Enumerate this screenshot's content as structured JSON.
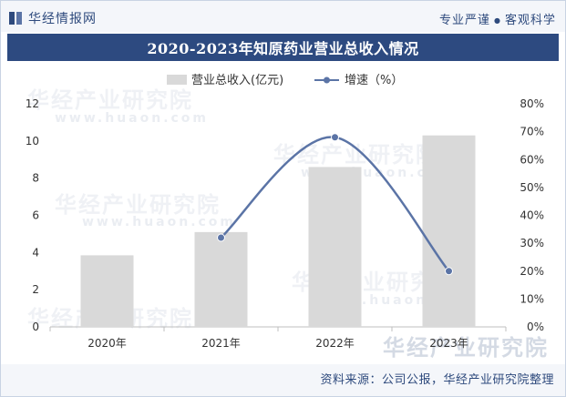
{
  "header": {
    "brand": "华经情报网",
    "slogan_left": "专业严谨",
    "slogan_dot": "●",
    "slogan_right": "客观科学"
  },
  "title": "2020-2023年知原药业营业总收入情况",
  "chart_data": {
    "type": "bar",
    "title": "2020-2023年知原药业营业总收入情况",
    "categories": [
      "2020年",
      "2021年",
      "2022年",
      "2023年"
    ],
    "series": [
      {
        "name": "营业总收入(亿元)",
        "type": "bar",
        "axis": "left",
        "values": [
          3.85,
          5.1,
          8.6,
          10.3
        ],
        "color": "#d9d9d9"
      },
      {
        "name": "增速（%）",
        "type": "line",
        "axis": "right",
        "values": [
          null,
          32,
          68,
          20
        ],
        "color": "#5b74a6"
      }
    ],
    "y_left": {
      "min": 0,
      "max": 12,
      "ticks": [
        0,
        2,
        4,
        6,
        8,
        10,
        12
      ],
      "labels": [
        "0",
        "2",
        "4",
        "6",
        "8",
        "10",
        "12"
      ]
    },
    "y_right": {
      "min": 0,
      "max": 80,
      "ticks": [
        0,
        10,
        20,
        30,
        40,
        50,
        60,
        70,
        80
      ],
      "labels": [
        "0%",
        "10%",
        "20%",
        "30%",
        "40%",
        "50%",
        "60%",
        "70%",
        "80%"
      ]
    },
    "legend_position": "top-center",
    "grid": false
  },
  "watermark": {
    "text": "华经产业研究院",
    "url": "www.huaon.com"
  },
  "footer": {
    "source": "资料来源：公司公报，华经产业研究院整理"
  },
  "colors": {
    "brand": "#2e4a7d",
    "title_bar": "#2d4a80",
    "bar": "#d9d9d9",
    "line": "#5b74a6"
  }
}
